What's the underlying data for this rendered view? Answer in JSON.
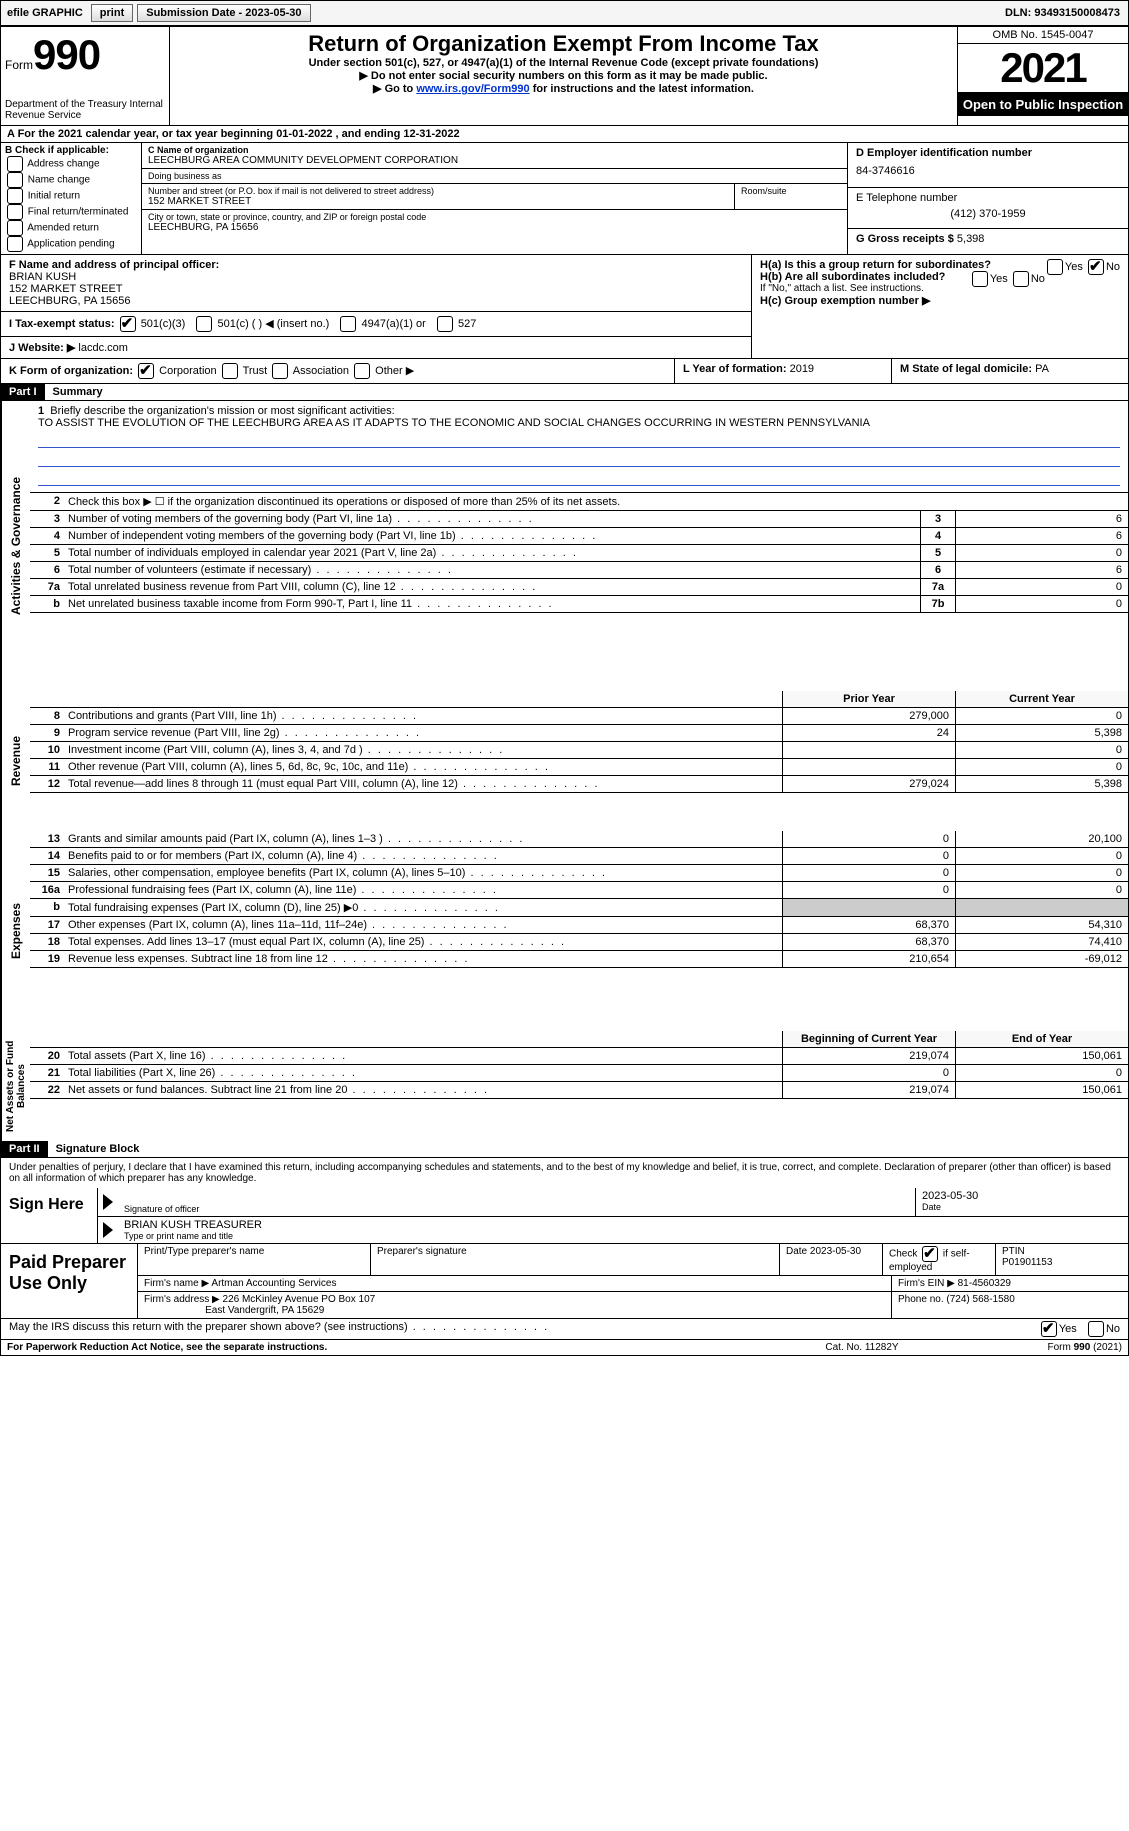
{
  "topbar": {
    "efile_label": "efile GRAPHIC",
    "print_btn": "print",
    "submission_label": "Submission Date - 2023-05-30",
    "dln": "DLN: 93493150008473"
  },
  "header": {
    "form_word": "Form",
    "form_number": "990",
    "dept": "Department of the Treasury Internal Revenue Service",
    "title": "Return of Organization Exempt From Income Tax",
    "subtitle": "Under section 501(c), 527, or 4947(a)(1) of the Internal Revenue Code (except private foundations)",
    "note1": "Do not enter social security numbers on this form as it may be made public.",
    "note2_pre": "Go to ",
    "note2_link": "www.irs.gov/Form990",
    "note2_post": " for instructions and the latest information.",
    "omb": "OMB No. 1545-0047",
    "year": "2021",
    "open": "Open to Public Inspection"
  },
  "row_a": {
    "text": "A For the 2021 calendar year, or tax year beginning 01-01-2022   , and ending 12-31-2022"
  },
  "col_b": {
    "label": "B Check if applicable:",
    "items": [
      "Address change",
      "Name change",
      "Initial return",
      "Final return/terminated",
      "Amended return",
      "Application pending"
    ]
  },
  "col_c": {
    "name_label": "C Name of organization",
    "name": "LEECHBURG AREA COMMUNITY DEVELOPMENT CORPORATION",
    "dba_label": "Doing business as",
    "dba": "",
    "addr_label": "Number and street (or P.O. box if mail is not delivered to street address)",
    "room_label": "Room/suite",
    "addr": "152 MARKET STREET",
    "city_label": "City or town, state or province, country, and ZIP or foreign postal code",
    "city": "LEECHBURG, PA  15656"
  },
  "col_d": {
    "ein_label": "D Employer identification number",
    "ein": "84-3746616",
    "phone_label": "E Telephone number",
    "phone": "(412) 370-1959",
    "gross_label": "G Gross receipts $",
    "gross": "5,398"
  },
  "f": {
    "label": "F  Name and address of principal officer:",
    "name": "BRIAN KUSH",
    "addr1": "152 MARKET STREET",
    "addr2": "LEECHBURG, PA  15656"
  },
  "h": {
    "a_label": "H(a)  Is this a group return for subordinates?",
    "b_label": "H(b)  Are all subordinates included?",
    "b_note": "If \"No,\" attach a list. See instructions.",
    "c_label": "H(c)  Group exemption number ▶",
    "yes": "Yes",
    "no": "No"
  },
  "i": {
    "label": "I  Tax-exempt status:",
    "opts": [
      "501(c)(3)",
      "501(c) (  ) ◀ (insert no.)",
      "4947(a)(1) or",
      "527"
    ]
  },
  "j": {
    "label": "J  Website: ▶",
    "val": "lacdc.com"
  },
  "k": {
    "label": "K Form of organization:",
    "opts": [
      "Corporation",
      "Trust",
      "Association",
      "Other ▶"
    ]
  },
  "l": {
    "label": "L Year of formation:",
    "val": "2019"
  },
  "m": {
    "label": "M State of legal domicile:",
    "val": "PA"
  },
  "part1": {
    "tag": "Part I",
    "title": "Summary"
  },
  "mission": {
    "num": "1",
    "label": "Briefly describe the organization's mission or most significant activities:",
    "text": "TO ASSIST THE EVOLUTION OF THE LEECHBURG AREA AS IT ADAPTS TO THE ECONOMIC AND SOCIAL CHANGES OCCURRING IN WESTERN PENNSYLVANIA"
  },
  "line2": {
    "num": "2",
    "desc": "Check this box ▶ ☐ if the organization discontinued its operations or disposed of more than 25% of its net assets."
  },
  "gov_rows": [
    {
      "num": "3",
      "desc": "Number of voting members of the governing body (Part VI, line 1a)",
      "box": "3",
      "val": "6"
    },
    {
      "num": "4",
      "desc": "Number of independent voting members of the governing body (Part VI, line 1b)",
      "box": "4",
      "val": "6"
    },
    {
      "num": "5",
      "desc": "Total number of individuals employed in calendar year 2021 (Part V, line 2a)",
      "box": "5",
      "val": "0"
    },
    {
      "num": "6",
      "desc": "Total number of volunteers (estimate if necessary)",
      "box": "6",
      "val": "6"
    },
    {
      "num": "7a",
      "desc": "Total unrelated business revenue from Part VIII, column (C), line 12",
      "box": "7a",
      "val": "0"
    },
    {
      "num": "b",
      "desc": "Net unrelated business taxable income from Form 990-T, Part I, line 11",
      "box": "7b",
      "val": "0"
    }
  ],
  "cols": {
    "prior": "Prior Year",
    "current": "Current Year",
    "boy": "Beginning of Current Year",
    "eoy": "End of Year"
  },
  "rev_rows": [
    {
      "num": "8",
      "desc": "Contributions and grants (Part VIII, line 1h)",
      "prior": "279,000",
      "current": "0"
    },
    {
      "num": "9",
      "desc": "Program service revenue (Part VIII, line 2g)",
      "prior": "24",
      "current": "5,398"
    },
    {
      "num": "10",
      "desc": "Investment income (Part VIII, column (A), lines 3, 4, and 7d )",
      "prior": "",
      "current": "0"
    },
    {
      "num": "11",
      "desc": "Other revenue (Part VIII, column (A), lines 5, 6d, 8c, 9c, 10c, and 11e)",
      "prior": "",
      "current": "0"
    },
    {
      "num": "12",
      "desc": "Total revenue—add lines 8 through 11 (must equal Part VIII, column (A), line 12)",
      "prior": "279,024",
      "current": "5,398"
    }
  ],
  "exp_rows": [
    {
      "num": "13",
      "desc": "Grants and similar amounts paid (Part IX, column (A), lines 1–3 )",
      "prior": "0",
      "current": "20,100"
    },
    {
      "num": "14",
      "desc": "Benefits paid to or for members (Part IX, column (A), line 4)",
      "prior": "0",
      "current": "0"
    },
    {
      "num": "15",
      "desc": "Salaries, other compensation, employee benefits (Part IX, column (A), lines 5–10)",
      "prior": "0",
      "current": "0"
    },
    {
      "num": "16a",
      "desc": "Professional fundraising fees (Part IX, column (A), line 11e)",
      "prior": "0",
      "current": "0"
    },
    {
      "num": "b",
      "desc": "Total fundraising expenses (Part IX, column (D), line 25) ▶0",
      "prior": "shade",
      "current": "shade"
    },
    {
      "num": "17",
      "desc": "Other expenses (Part IX, column (A), lines 11a–11d, 11f–24e)",
      "prior": "68,370",
      "current": "54,310"
    },
    {
      "num": "18",
      "desc": "Total expenses. Add lines 13–17 (must equal Part IX, column (A), line 25)",
      "prior": "68,370",
      "current": "74,410"
    },
    {
      "num": "19",
      "desc": "Revenue less expenses. Subtract line 18 from line 12",
      "prior": "210,654",
      "current": "-69,012"
    }
  ],
  "net_rows": [
    {
      "num": "20",
      "desc": "Total assets (Part X, line 16)",
      "prior": "219,074",
      "current": "150,061"
    },
    {
      "num": "21",
      "desc": "Total liabilities (Part X, line 26)",
      "prior": "0",
      "current": "0"
    },
    {
      "num": "22",
      "desc": "Net assets or fund balances. Subtract line 21 from line 20",
      "prior": "219,074",
      "current": "150,061"
    }
  ],
  "part2": {
    "tag": "Part II",
    "title": "Signature Block"
  },
  "sig": {
    "penalty": "Under penalties of perjury, I declare that I have examined this return, including accompanying schedules and statements, and to the best of my knowledge and belief, it is true, correct, and complete. Declaration of preparer (other than officer) is based on all information of which preparer has any knowledge.",
    "sign_here": "Sign Here",
    "sig_officer": "Signature of officer",
    "date": "2023-05-30",
    "date_label": "Date",
    "name": "BRIAN KUSH  TREASURER",
    "name_label": "Type or print name and title"
  },
  "paid": {
    "label": "Paid Preparer Use Only",
    "r1": {
      "c1": "Print/Type preparer's name",
      "c2": "Preparer's signature",
      "c3": "Date 2023-05-30",
      "c4_label": "Check",
      "c4_text": "if self-employed",
      "c5_label": "PTIN",
      "c5_val": "P01901153"
    },
    "r2": {
      "c1": "Firm's name    ▶",
      "c1v": "Artman Accounting Services",
      "c2": "Firm's EIN ▶",
      "c2v": "81-4560329"
    },
    "r3": {
      "c1": "Firm's address ▶",
      "c1v": "226 McKinley Avenue PO Box 107",
      "c1v2": "East Vandergrift, PA  15629",
      "c2": "Phone no.",
      "c2v": "(724) 568-1580"
    }
  },
  "may_discuss": {
    "text": "May the IRS discuss this return with the preparer shown above? (see instructions)",
    "yes": "Yes",
    "no": "No"
  },
  "footer": {
    "left": "For Paperwork Reduction Act Notice, see the separate instructions.",
    "mid": "Cat. No. 11282Y",
    "right": "Form 990 (2021)"
  },
  "vtabs": {
    "gov": "Activities & Governance",
    "rev": "Revenue",
    "exp": "Expenses",
    "net": "Net Assets or Fund Balances"
  }
}
